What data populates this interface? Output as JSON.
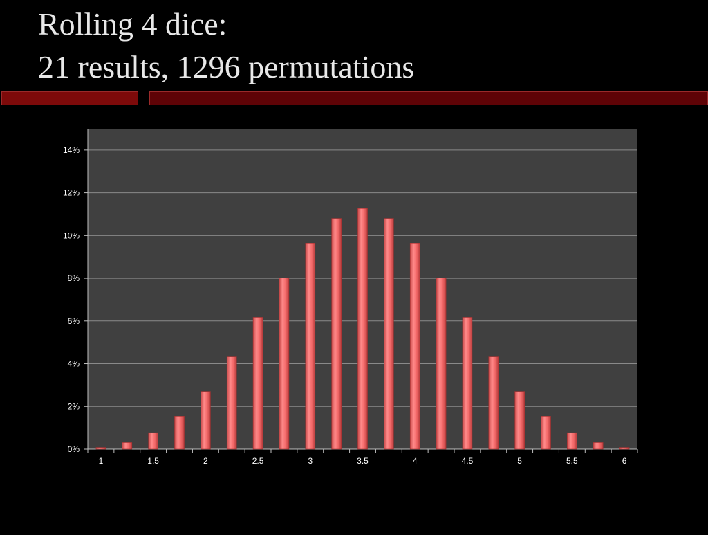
{
  "slide": {
    "title_line1": "Rolling 4 dice:",
    "title_line2": "21 results, 1296 permutations"
  },
  "colors": {
    "background": "#000000",
    "plot_background": "#404040",
    "gridline": "#8a8a8a",
    "bar": "#f46a6a",
    "rule_left": "#7d0a0a",
    "rule_right": "#5e0306",
    "title_text": "#e8e8e8",
    "tick_text": "#ffffff"
  },
  "chart_data": {
    "type": "bar",
    "title": "",
    "xlabel": "",
    "ylabel": "",
    "categories": [
      1,
      1.25,
      1.5,
      1.75,
      2,
      2.25,
      2.5,
      2.75,
      3,
      3.25,
      3.5,
      3.75,
      4,
      4.25,
      4.5,
      4.75,
      5,
      5.25,
      5.5,
      5.75,
      6
    ],
    "values": [
      0.077,
      0.309,
      0.772,
      1.543,
      2.701,
      4.321,
      6.173,
      8.025,
      9.645,
      10.802,
      11.265,
      10.802,
      9.645,
      8.025,
      6.173,
      4.321,
      2.701,
      1.543,
      0.772,
      0.309,
      0.077
    ],
    "value_unit": "%",
    "ylim": [
      0,
      15
    ],
    "yticks": [
      "0%",
      "2%",
      "4%",
      "6%",
      "8%",
      "10%",
      "12%",
      "14%"
    ],
    "ytick_values": [
      0,
      2,
      4,
      6,
      8,
      10,
      12,
      14
    ],
    "xticks": [
      "1",
      "1.5",
      "2",
      "2.5",
      "3",
      "3.5",
      "4",
      "4.5",
      "5",
      "5.5",
      "6"
    ],
    "xtick_values": [
      1,
      1.5,
      2,
      2.5,
      3,
      3.5,
      4,
      4.5,
      5,
      5.5,
      6
    ],
    "grid": true,
    "legend": "none"
  }
}
